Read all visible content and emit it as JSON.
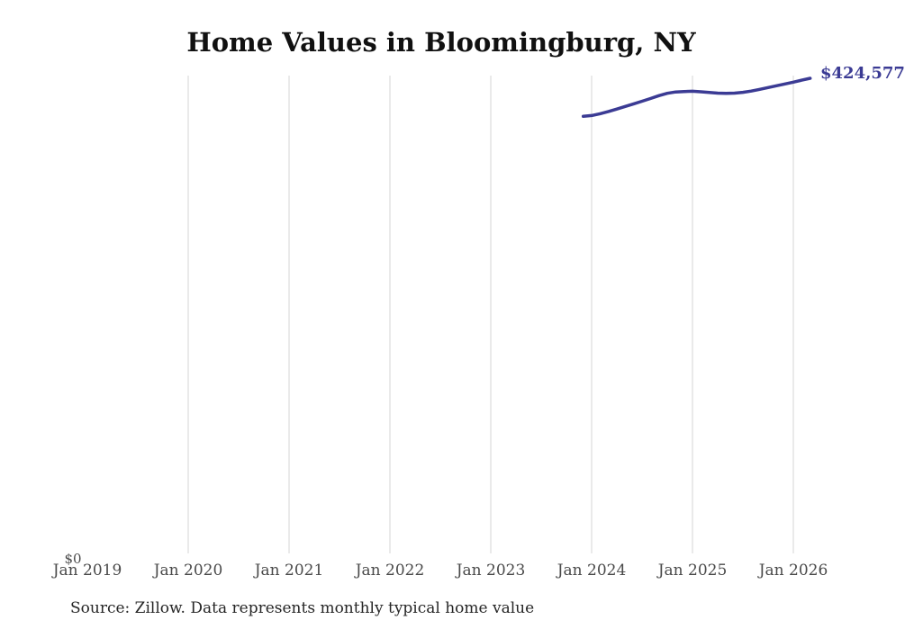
{
  "title": "Home Values in Bloomingburg, NY",
  "source_note": "Source: Zillow. Data represents monthly typical home value",
  "colors": {
    "line": "#3b3b94",
    "end_label": "#3b3b94",
    "grid": "#d5d5d5",
    "tick_text": "#4a4a4a",
    "title_text": "#111111",
    "source_text": "#262626",
    "background": "#ffffff"
  },
  "chart_data": {
    "type": "line",
    "title": "Home Values in Bloomingburg, NY",
    "x_tick_labels": [
      "Jan 2019",
      "Jan 2020",
      "Jan 2021",
      "Jan 2022",
      "Jan 2023",
      "Jan 2024",
      "Jan 2025",
      "Jan 2026"
    ],
    "grid": "vertical gridlines at each January tick from 2020 through 2026",
    "legend": "none",
    "ylim": [
      0,
      427000
    ],
    "y_axis": {
      "zero_label": "$0"
    },
    "end_value_label": "$424,577",
    "series": [
      {
        "name": "Monthly typical home value",
        "frequency": "monthly",
        "start_month": "2023-12",
        "values": [
          391000,
          391600,
          393200,
          395200,
          397400,
          399700,
          402000,
          404300,
          406700,
          409200,
          411300,
          412500,
          412900,
          413100,
          412700,
          412100,
          411500,
          411200,
          411500,
          412200,
          413300,
          414800,
          416400,
          418000,
          419600,
          421200,
          422900,
          424577
        ]
      }
    ]
  }
}
